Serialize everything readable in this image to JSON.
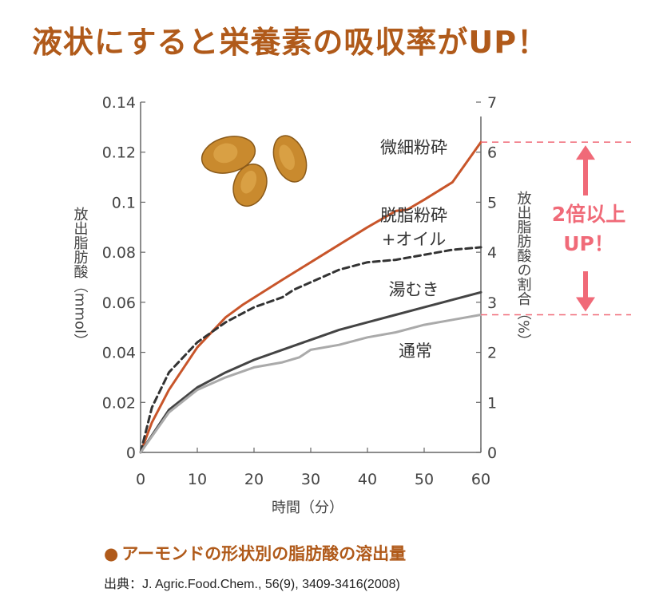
{
  "headline": "液状にすると栄養素の吸収率がUP！",
  "caption": {
    "bullet": "●",
    "text": "アーモンドの形状別の脂肪酸の溶出量"
  },
  "source": "出典：J. Agric.Food.Chem., 56(9), 3409-3416(2008)",
  "annotation": {
    "line1": "2倍以上",
    "line2": "UP！",
    "color": "#f06a78"
  },
  "illustration": "almonds-illustration",
  "chart_data": {
    "type": "line",
    "xlabel": "時間（分）",
    "ylabel": "放出脂肪酸（mmol）",
    "y2label": "放出脂肪酸の割合（%）",
    "xlim": [
      0,
      60
    ],
    "ylim": [
      0,
      0.14
    ],
    "y2lim": [
      0,
      7
    ],
    "xticks": [
      "0",
      "10",
      "20",
      "30",
      "40",
      "50",
      "60"
    ],
    "yticks": [
      "0",
      "0.02",
      "0.04",
      "0.06",
      "0.08",
      "0.1",
      "0.12",
      "0.14"
    ],
    "y2ticks": [
      "0",
      "1",
      "2",
      "3",
      "4",
      "5",
      "6",
      "7"
    ],
    "grid": false,
    "series": [
      {
        "name": "微細粉砕",
        "color": "#c8552a",
        "dash": "solid",
        "x": [
          0,
          2,
          5,
          10,
          15,
          18,
          25,
          30,
          35,
          40,
          45,
          47,
          50,
          55,
          60
        ],
        "y": [
          0,
          0.012,
          0.025,
          0.042,
          0.054,
          0.059,
          0.069,
          0.076,
          0.083,
          0.09,
          0.0965,
          0.097,
          0.101,
          0.108,
          0.124
        ]
      },
      {
        "name": "脱脂粉砕\n+オイル",
        "color": "#333333",
        "dash": "dashed",
        "x": [
          0,
          2,
          5,
          10,
          15,
          20,
          25,
          27,
          30,
          35,
          40,
          45,
          50,
          55,
          60
        ],
        "y": [
          0,
          0.018,
          0.032,
          0.044,
          0.052,
          0.058,
          0.062,
          0.065,
          0.068,
          0.073,
          0.076,
          0.077,
          0.079,
          0.081,
          0.082
        ]
      },
      {
        "name": "湯むき",
        "color": "#444444",
        "dash": "solid",
        "x": [
          0,
          5,
          10,
          15,
          20,
          25,
          30,
          35,
          40,
          45,
          50,
          55,
          60
        ],
        "y": [
          0,
          0.017,
          0.026,
          0.032,
          0.037,
          0.041,
          0.045,
          0.049,
          0.052,
          0.055,
          0.058,
          0.061,
          0.064
        ]
      },
      {
        "name": "通常",
        "color": "#aaaaaa",
        "dash": "solid",
        "x": [
          0,
          5,
          10,
          15,
          20,
          25,
          28,
          30,
          35,
          40,
          45,
          50,
          55,
          60
        ],
        "y": [
          0,
          0.016,
          0.025,
          0.03,
          0.034,
          0.036,
          0.038,
          0.041,
          0.043,
          0.046,
          0.048,
          0.051,
          0.053,
          0.055
        ]
      }
    ]
  }
}
